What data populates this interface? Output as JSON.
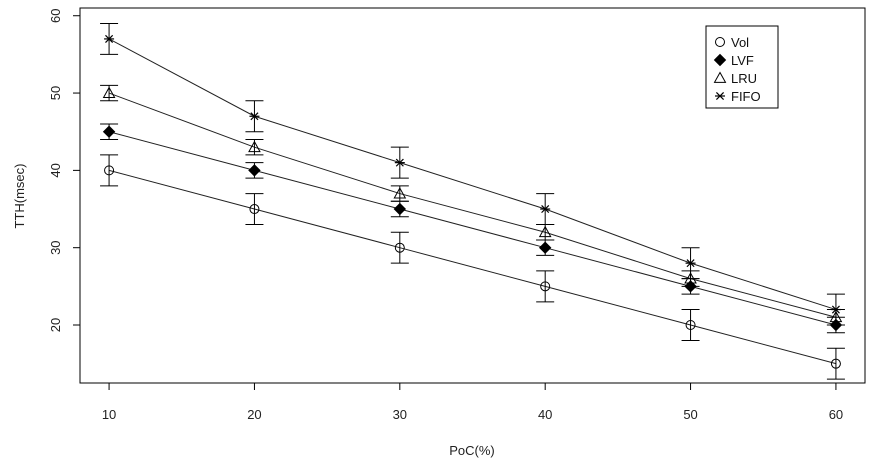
{
  "chart_data": {
    "type": "line",
    "xlabel": "PoC(%)",
    "ylabel": "TTH(msec)",
    "x": [
      10,
      20,
      30,
      40,
      50,
      60
    ],
    "xlim": [
      8,
      62
    ],
    "ylim": [
      12.5,
      61
    ],
    "xticks": [
      10,
      20,
      30,
      40,
      50,
      60
    ],
    "yticks": [
      20,
      30,
      40,
      50,
      60
    ],
    "grid": false,
    "legend_position": "top-right",
    "error_bars": true,
    "series": [
      {
        "name": "Vol",
        "marker": "circle",
        "values": [
          40,
          35,
          30,
          25,
          20,
          15
        ],
        "err": [
          2,
          2,
          2,
          2,
          2,
          2
        ]
      },
      {
        "name": "LVF",
        "marker": "diamond",
        "values": [
          45,
          40,
          35,
          30,
          25,
          20
        ],
        "err": [
          1,
          1,
          1,
          1,
          1,
          1
        ]
      },
      {
        "name": "LRU",
        "marker": "triangle",
        "values": [
          50,
          43,
          37,
          32,
          26,
          21
        ],
        "err": [
          1,
          1,
          1,
          1,
          1,
          1
        ]
      },
      {
        "name": "FIFO",
        "marker": "asterisk",
        "values": [
          57,
          47,
          41,
          35,
          28,
          22
        ],
        "err": [
          2,
          2,
          2,
          2,
          2,
          2
        ]
      }
    ]
  }
}
